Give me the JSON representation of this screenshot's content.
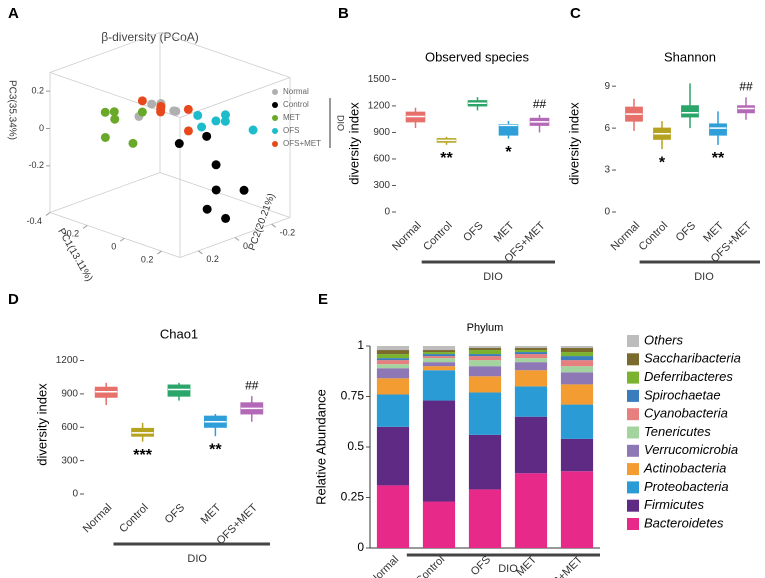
{
  "chart_data": [
    {
      "type": "scatter3d",
      "panel": "A",
      "title": "β-diversity (PCoA)",
      "x_label": "PC1(13.11%)",
      "y_label": "PC2(20.21%)",
      "z_label": "PC3(35.34%)",
      "xlim": [
        -0.4,
        0.3
      ],
      "ylim": [
        -0.3,
        0.3
      ],
      "zlim": [
        -0.45,
        0.3
      ],
      "xticks": [
        -0.4,
        -0.2,
        0,
        0.2
      ],
      "yticks": [
        -0.2,
        0,
        0.2
      ],
      "zticks": [
        -0.2,
        0,
        0.2
      ],
      "group_label": "DIO",
      "series": [
        {
          "name": "Normal",
          "color": "#b0b0b0",
          "x": [
            0.0,
            0.05,
            -0.05,
            0.02,
            0.1,
            -0.02
          ],
          "y": [
            0.1,
            0.15,
            0.1,
            0.05,
            0.12,
            0.2
          ],
          "z": [
            0.2,
            0.22,
            0.18,
            0.15,
            0.2,
            0.16
          ]
        },
        {
          "name": "Control",
          "color": "#000000",
          "x": [
            0.1,
            0.15,
            0.2,
            0.05,
            0.0,
            0.25,
            -0.05
          ],
          "y": [
            -0.1,
            0.0,
            -0.05,
            -0.15,
            0.0,
            -0.1,
            -0.2
          ],
          "z": [
            -0.3,
            -0.35,
            -0.4,
            -0.2,
            -0.05,
            -0.25,
            -0.1
          ]
        },
        {
          "name": "MET",
          "color": "#6aa82a",
          "x": [
            -0.3,
            -0.25,
            -0.2,
            -0.15,
            -0.35,
            -0.1
          ],
          "y": [
            0.1,
            0.15,
            0.05,
            0.2,
            0.0,
            0.1
          ],
          "z": [
            0.05,
            -0.05,
            -0.1,
            0.1,
            0.0,
            0.12
          ]
        },
        {
          "name": "OFS",
          "color": "#1cbccb",
          "x": [
            0.05,
            0.1,
            0.15,
            0.0,
            0.12,
            0.2
          ],
          "y": [
            -0.05,
            -0.15,
            -0.1,
            -0.2,
            0.0,
            -0.2
          ],
          "z": [
            0.1,
            0.05,
            0.12,
            0.0,
            0.08,
            0.02
          ]
        },
        {
          "name": "OFS+MET",
          "color": "#e8491c",
          "x": [
            -0.1,
            -0.05,
            -0.15,
            0.0,
            -0.1,
            -0.05
          ],
          "y": [
            0.0,
            0.05,
            -0.05,
            -0.05,
            0.1,
            -0.1
          ],
          "z": [
            0.1,
            0.15,
            0.05,
            0.0,
            0.18,
            0.08
          ]
        }
      ]
    },
    {
      "type": "box",
      "panel": "B",
      "title": "Observed species",
      "y_label": "diversity index",
      "group_label": "DIO",
      "categories": [
        "Normal",
        "Control",
        "OFS",
        "MET",
        "OFS+MET"
      ],
      "colors": [
        "#e8706a",
        "#b5a21e",
        "#2aa66a",
        "#2e9fd9",
        "#b468b8"
      ],
      "ylim": [
        0,
        1550
      ],
      "yticks": [
        0,
        300,
        600,
        900,
        1200,
        1500
      ],
      "min": [
        950,
        760,
        1150,
        830,
        900
      ],
      "q1": [
        1020,
        790,
        1200,
        870,
        980
      ],
      "median": [
        1080,
        810,
        1230,
        980,
        1020
      ],
      "q3": [
        1130,
        830,
        1260,
        990,
        1060
      ],
      "max": [
        1180,
        850,
        1300,
        1030,
        1100
      ],
      "significance_vs_normal": [
        null,
        "**",
        null,
        "*",
        null
      ],
      "significance_vs_control": [
        null,
        null,
        null,
        null,
        "##"
      ]
    },
    {
      "type": "box",
      "panel": "C",
      "title": "Shannon",
      "y_label": "diversity index",
      "group_label": "DIO",
      "categories": [
        "Normal",
        "Control",
        "OFS",
        "MET",
        "OFS+MET"
      ],
      "colors": [
        "#e8706a",
        "#b5a21e",
        "#2aa66a",
        "#2e9fd9",
        "#b468b8"
      ],
      "ylim": [
        0,
        9.8
      ],
      "yticks": [
        0,
        3,
        6,
        9
      ],
      "min": [
        5.8,
        4.5,
        6.0,
        4.8,
        6.6
      ],
      "q1": [
        6.5,
        5.2,
        6.8,
        5.5,
        7.1
      ],
      "median": [
        7.0,
        5.6,
        7.1,
        6.0,
        7.4
      ],
      "q3": [
        7.5,
        6.0,
        7.6,
        6.3,
        7.6
      ],
      "max": [
        8.1,
        6.5,
        9.2,
        7.2,
        8.2
      ],
      "significance_vs_normal": [
        null,
        "*",
        null,
        "**",
        null
      ],
      "significance_vs_control": [
        null,
        null,
        null,
        null,
        "##"
      ]
    },
    {
      "type": "box",
      "panel": "D",
      "title": "Chao1",
      "y_label": "diversity index",
      "group_label": "DIO",
      "categories": [
        "Normal",
        "Control",
        "OFS",
        "MET",
        "OFS+MET"
      ],
      "colors": [
        "#e8706a",
        "#b5a21e",
        "#2aa66a",
        "#2e9fd9",
        "#b468b8"
      ],
      "ylim": [
        0,
        1250
      ],
      "yticks": [
        0,
        300,
        600,
        900,
        1200
      ],
      "min": [
        800,
        470,
        840,
        520,
        650
      ],
      "q1": [
        870,
        520,
        880,
        600,
        720
      ],
      "median": [
        920,
        550,
        940,
        650,
        770
      ],
      "q3": [
        960,
        590,
        980,
        700,
        820
      ],
      "max": [
        1000,
        640,
        1000,
        720,
        880
      ],
      "significance_vs_normal": [
        null,
        "***",
        null,
        "**",
        null
      ],
      "significance_vs_control": [
        null,
        null,
        null,
        null,
        "##"
      ]
    },
    {
      "type": "stacked_bar",
      "panel": "E",
      "title": "Phylum",
      "y_label": "Relative Abundance",
      "group_label": "DIO",
      "categories": [
        "Normal",
        "Control",
        "OFS",
        "MET",
        "OFS+MET"
      ],
      "ylim": [
        0,
        1
      ],
      "yticks": [
        0,
        0.25,
        0.5,
        0.75,
        1
      ],
      "series": [
        {
          "name": "Bacteroidetes",
          "color": "#e7298a",
          "values": [
            0.31,
            0.23,
            0.29,
            0.37,
            0.38
          ]
        },
        {
          "name": "Firmicutes",
          "color": "#5e2a84",
          "values": [
            0.29,
            0.5,
            0.27,
            0.28,
            0.16
          ]
        },
        {
          "name": "Proteobacteria",
          "color": "#2b9bd6",
          "values": [
            0.16,
            0.15,
            0.21,
            0.15,
            0.17
          ]
        },
        {
          "name": "Actinobacteria",
          "color": "#f39c32",
          "values": [
            0.08,
            0.02,
            0.08,
            0.08,
            0.1
          ]
        },
        {
          "name": "Verrucomicrobia",
          "color": "#8d77b5",
          "values": [
            0.05,
            0.02,
            0.05,
            0.04,
            0.06
          ]
        },
        {
          "name": "Tenericutes",
          "color": "#a3d4a0",
          "values": [
            0.02,
            0.02,
            0.03,
            0.02,
            0.03
          ]
        },
        {
          "name": "Cyanobacteria",
          "color": "#e77f7f",
          "values": [
            0.02,
            0.01,
            0.02,
            0.02,
            0.03
          ]
        },
        {
          "name": "Spirochaetae",
          "color": "#3a7dbd",
          "values": [
            0.01,
            0.01,
            0.01,
            0.01,
            0.02
          ]
        },
        {
          "name": "Deferribacteres",
          "color": "#7bb32e",
          "values": [
            0.02,
            0.01,
            0.02,
            0.01,
            0.02
          ]
        },
        {
          "name": "Saccharibacteria",
          "color": "#7a6a2c",
          "values": [
            0.02,
            0.01,
            0.01,
            0.01,
            0.02
          ]
        },
        {
          "name": "Others",
          "color": "#bdbdbd",
          "values": [
            0.02,
            0.02,
            0.01,
            0.01,
            0.01
          ]
        }
      ]
    }
  ]
}
